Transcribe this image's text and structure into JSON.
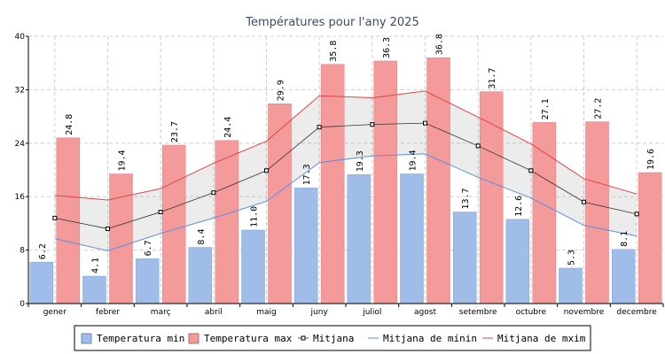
{
  "chart_data": {
    "type": "bar",
    "title": "Températures pour l'any 2025",
    "categories": [
      "gener",
      "febrer",
      "març",
      "abril",
      "maig",
      "juny",
      "juliol",
      "agost",
      "setembre",
      "octubre",
      "novembre",
      "decembre"
    ],
    "ylim": [
      0,
      40
    ],
    "yticks": [
      0,
      8,
      16,
      24,
      32,
      40
    ],
    "grid": true,
    "legend_position": "bottom",
    "series": [
      {
        "name": "Temperatura min",
        "kind": "bar",
        "color": "#a0bce8",
        "values": [
          6.2,
          4.1,
          6.7,
          8.4,
          11.0,
          17.3,
          19.3,
          19.4,
          13.7,
          12.6,
          5.3,
          8.1
        ]
      },
      {
        "name": "Temperatura max",
        "kind": "bar",
        "color": "#f59a9a",
        "values": [
          24.8,
          19.4,
          23.7,
          24.4,
          29.9,
          35.8,
          36.3,
          36.8,
          31.7,
          27.1,
          27.2,
          19.6
        ]
      },
      {
        "name": "Mitjana",
        "kind": "line",
        "color": "#333333",
        "values": [
          12.8,
          11.2,
          13.7,
          16.6,
          19.9,
          26.4,
          26.8,
          27.0,
          23.6,
          19.9,
          15.2,
          13.4
        ]
      },
      {
        "name": "Mitjana de mínin",
        "kind": "line",
        "color": "#5a8ee6",
        "values": [
          9.7,
          7.9,
          10.5,
          12.8,
          15.3,
          21.1,
          22.1,
          22.4,
          18.9,
          15.8,
          11.7,
          10.1
        ]
      },
      {
        "name": "Mitjana de mxim",
        "kind": "line",
        "color": "#e04545",
        "values": [
          16.2,
          15.5,
          17.2,
          21.0,
          24.3,
          31.1,
          30.8,
          31.8,
          27.9,
          23.9,
          18.7,
          16.4
        ]
      }
    ]
  }
}
